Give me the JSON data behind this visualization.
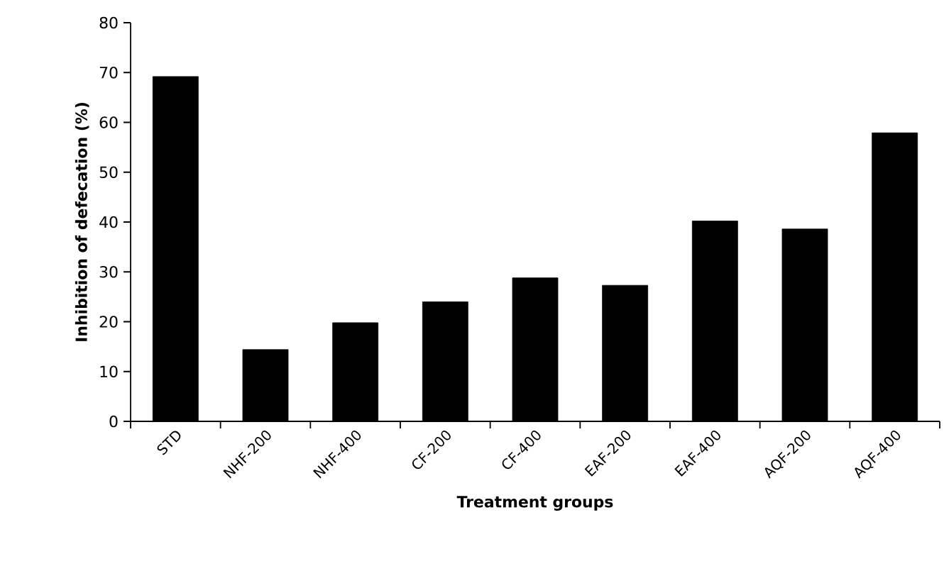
{
  "chart_data": {
    "type": "bar",
    "xlabel": "Treatment groups",
    "ylabel": "Inhibition of defecation (%)",
    "categories": [
      "STD",
      "NHF-200",
      "NHF-400",
      "CF-200",
      "CF-400",
      "EAF-200",
      "EAF-400",
      "AQF-200",
      "AQF-400"
    ],
    "values": [
      69.2,
      14.4,
      19.8,
      24.0,
      28.8,
      27.3,
      40.2,
      38.6,
      57.9
    ],
    "color": "#000000",
    "ylim": [
      0,
      80
    ],
    "yticks": [
      0,
      10,
      20,
      30,
      40,
      50,
      60,
      70,
      80
    ],
    "grid": false
  }
}
